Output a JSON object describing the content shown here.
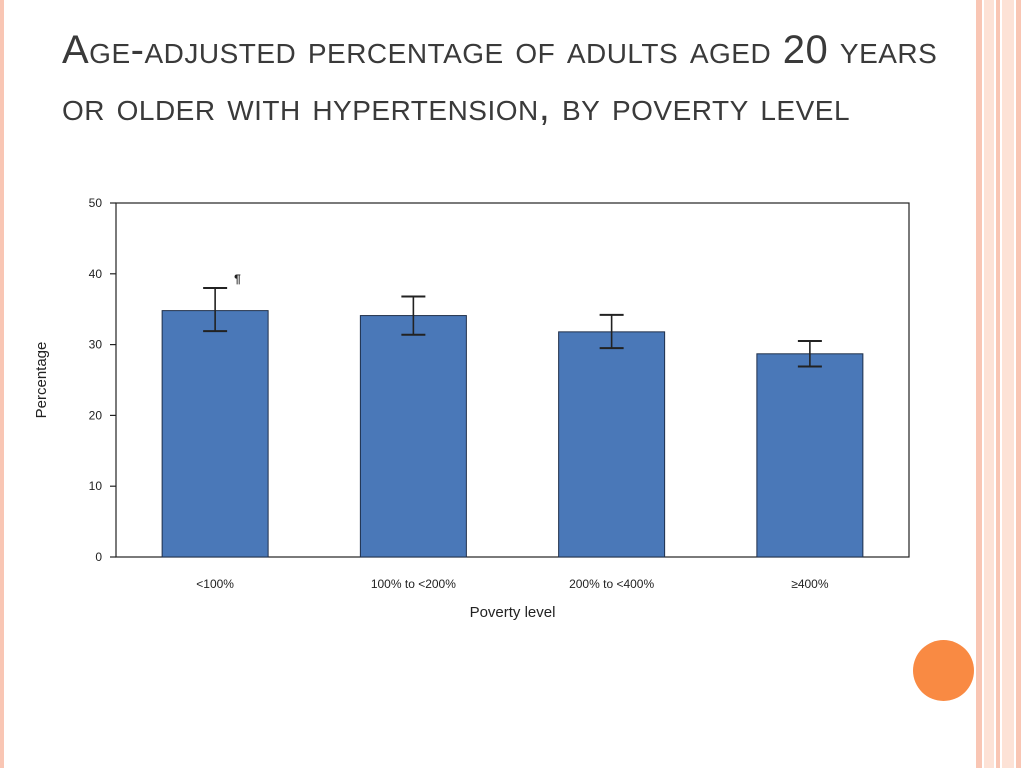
{
  "slide": {
    "title": "Age-adjusted percentage of adults aged 20 years or older with hypertension, by poverty level"
  },
  "theme": {
    "accent": "#f98a43",
    "bar_fill": "#4a78b8",
    "bar_stroke": "#1f2f4a",
    "stripe_colors": [
      "#f9c6b4",
      "#fde2d6"
    ]
  },
  "chart_data": {
    "type": "bar",
    "categories": [
      "<100%",
      "100% to <200%",
      "200% to <400%",
      "≥400%"
    ],
    "values": [
      34.8,
      34.1,
      31.8,
      28.7
    ],
    "error_low": [
      31.9,
      31.4,
      29.5,
      26.9
    ],
    "error_high": [
      38.0,
      36.8,
      34.2,
      30.5
    ],
    "annotation": "¶",
    "xlabel": "Poverty level",
    "ylabel": "Percentage",
    "ylim": [
      0,
      50
    ],
    "yticks": [
      0,
      10,
      20,
      30,
      40,
      50
    ],
    "grid": false,
    "legend": "none"
  }
}
